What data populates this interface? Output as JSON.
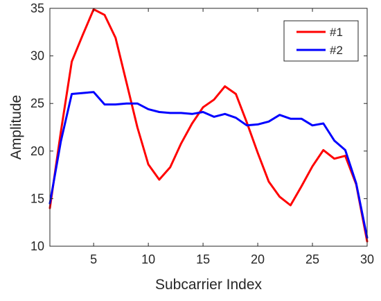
{
  "chart_data": {
    "type": "line",
    "title": "",
    "xlabel": "Subcarrier Index",
    "ylabel": "Amplitude",
    "xlim": [
      1,
      30
    ],
    "ylim": [
      10,
      35
    ],
    "xticks": [
      5,
      10,
      15,
      20,
      25,
      30
    ],
    "yticks": [
      10,
      15,
      20,
      25,
      30,
      35
    ],
    "grid": false,
    "legend_position": "top-right",
    "x": [
      1,
      2,
      3,
      4,
      5,
      6,
      7,
      8,
      9,
      10,
      11,
      12,
      13,
      14,
      15,
      16,
      17,
      18,
      19,
      20,
      21,
      22,
      23,
      24,
      25,
      26,
      27,
      28,
      29,
      30
    ],
    "series": [
      {
        "name": "#1",
        "color": "#ff0000",
        "values": [
          14.0,
          22.0,
          29.4,
          32.2,
          34.9,
          34.3,
          31.9,
          27.2,
          22.5,
          18.6,
          17.0,
          18.3,
          20.8,
          22.9,
          24.6,
          25.4,
          26.8,
          26.0,
          23.0,
          19.8,
          16.8,
          15.2,
          14.3,
          16.3,
          18.4,
          20.1,
          19.2,
          19.5,
          16.5,
          10.5
        ]
      },
      {
        "name": "#2",
        "color": "#0000ff",
        "values": [
          14.5,
          21.0,
          26.0,
          26.1,
          26.2,
          24.9,
          24.9,
          25.0,
          25.0,
          24.4,
          24.1,
          24.0,
          24.0,
          23.9,
          24.1,
          23.6,
          23.9,
          23.5,
          22.7,
          22.8,
          23.1,
          23.8,
          23.4,
          23.4,
          22.7,
          22.9,
          21.1,
          20.1,
          16.6,
          10.9
        ]
      }
    ]
  }
}
